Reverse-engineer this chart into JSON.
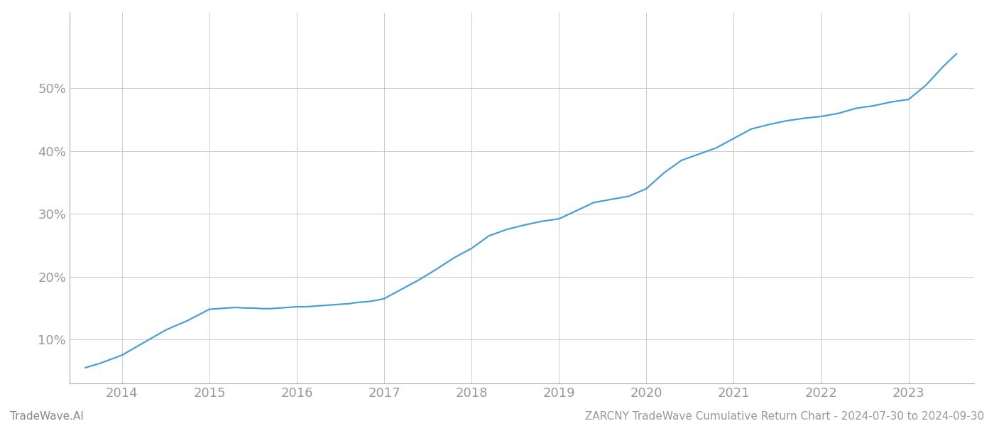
{
  "title": "ZARCNY TradeWave Cumulative Return Chart - 2024-07-30 to 2024-09-30",
  "watermark": "TradeWave.AI",
  "line_color": "#4a9fd4",
  "background_color": "#ffffff",
  "grid_color": "#cccccc",
  "x_years": [
    2014,
    2015,
    2016,
    2017,
    2018,
    2019,
    2020,
    2021,
    2022,
    2023
  ],
  "x_data": [
    2013.58,
    2013.75,
    2014.0,
    2014.25,
    2014.5,
    2014.75,
    2015.0,
    2015.1,
    2015.2,
    2015.3,
    2015.4,
    2015.5,
    2015.6,
    2015.7,
    2015.8,
    2015.9,
    2016.0,
    2016.1,
    2016.2,
    2016.3,
    2016.4,
    2016.5,
    2016.6,
    2016.7,
    2016.8,
    2016.9,
    2017.0,
    2017.2,
    2017.4,
    2017.6,
    2017.8,
    2018.0,
    2018.2,
    2018.4,
    2018.6,
    2018.8,
    2019.0,
    2019.2,
    2019.4,
    2019.6,
    2019.8,
    2020.0,
    2020.2,
    2020.4,
    2020.6,
    2020.8,
    2021.0,
    2021.2,
    2021.4,
    2021.6,
    2021.8,
    2022.0,
    2022.2,
    2022.4,
    2022.6,
    2022.8,
    2023.0,
    2023.2,
    2023.4,
    2023.55
  ],
  "y_data": [
    5.5,
    6.2,
    7.5,
    9.5,
    11.5,
    13.0,
    14.8,
    14.9,
    15.0,
    15.1,
    15.0,
    15.0,
    14.9,
    14.9,
    15.0,
    15.1,
    15.2,
    15.2,
    15.3,
    15.4,
    15.5,
    15.6,
    15.7,
    15.9,
    16.0,
    16.2,
    16.5,
    18.0,
    19.5,
    21.2,
    23.0,
    24.5,
    26.5,
    27.5,
    28.2,
    28.8,
    29.2,
    30.5,
    31.8,
    32.3,
    32.8,
    34.0,
    36.5,
    38.5,
    39.5,
    40.5,
    42.0,
    43.5,
    44.2,
    44.8,
    45.2,
    45.5,
    46.0,
    46.8,
    47.2,
    47.8,
    48.2,
    50.5,
    53.5,
    55.5
  ],
  "yticks": [
    10,
    20,
    30,
    40,
    50
  ],
  "ylim": [
    3,
    62
  ],
  "xlim": [
    2013.4,
    2023.75
  ],
  "tick_label_color": "#999999",
  "spine_color": "#aaaaaa",
  "title_color": "#999999",
  "watermark_color": "#888888",
  "title_fontsize": 11,
  "watermark_fontsize": 11,
  "tick_fontsize": 13,
  "line_width": 1.6
}
